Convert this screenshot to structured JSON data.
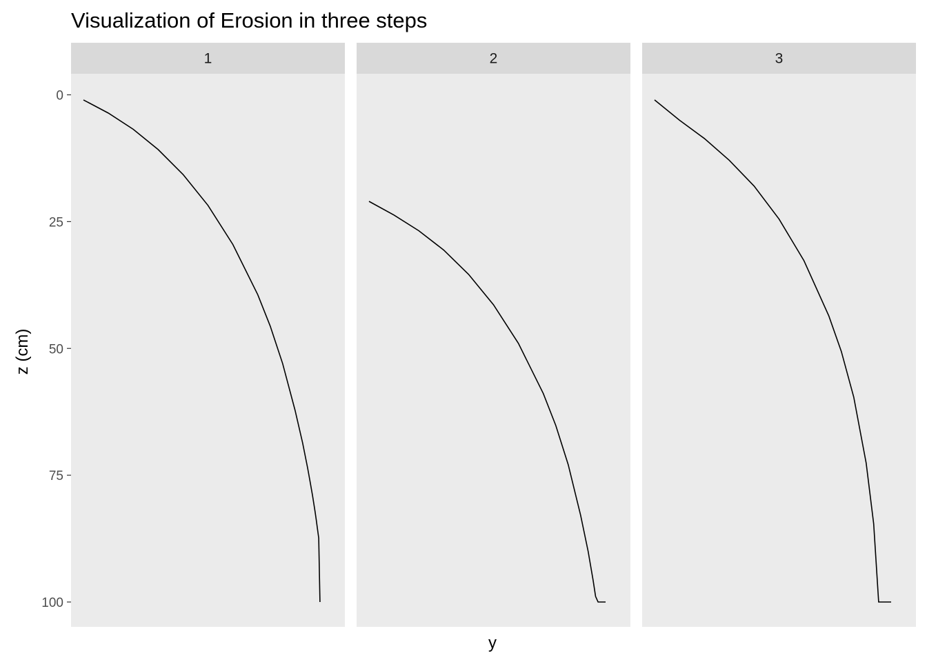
{
  "chart_data": {
    "type": "line",
    "title": "Visualization of Erosion in three steps",
    "xlabel": "y",
    "ylabel": "z (cm)",
    "y_reversed": true,
    "ylim": [
      0,
      100
    ],
    "y_ticks": [
      "0",
      "25",
      "50",
      "75",
      "100"
    ],
    "x_tick_labels": "none",
    "x_relative_range": [
      0,
      1
    ],
    "panel_background": "#ebebeb",
    "strip_background": "#d9d9d9",
    "line_color": "#000000",
    "facets": [
      {
        "label": "1",
        "series": {
          "x": [
            0.0,
            0.1,
            0.2,
            0.3,
            0.4,
            0.5,
            0.6,
            0.7,
            0.75,
            0.8,
            0.85,
            0.88,
            0.9,
            0.91,
            0.92,
            0.93,
            0.935,
            0.94,
            0.945,
            0.95
          ],
          "z": [
            1.0,
            3.6,
            6.8,
            10.8,
            15.7,
            21.8,
            29.5,
            39.4,
            45.6,
            53.0,
            62.2,
            68.6,
            73.5,
            76.2,
            79.0,
            82.1,
            83.8,
            85.6,
            87.4,
            100.0
          ]
        }
      },
      {
        "label": "2",
        "series": {
          "x": [
            0.0,
            0.1,
            0.2,
            0.3,
            0.4,
            0.5,
            0.6,
            0.7,
            0.75,
            0.8,
            0.85,
            0.88,
            0.9,
            0.91,
            0.92,
            0.93,
            0.935,
            0.94,
            0.945,
            0.95
          ],
          "z": [
            21.0,
            23.7,
            26.8,
            30.6,
            35.4,
            41.4,
            49.0,
            58.9,
            65.2,
            72.9,
            82.9,
            90.0,
            95.7,
            98.9,
            100.0,
            100.0,
            100.0,
            100.0,
            100.0,
            100.0
          ]
        }
      },
      {
        "label": "3",
        "series": {
          "x": [
            0.0,
            0.1,
            0.2,
            0.3,
            0.4,
            0.5,
            0.6,
            0.7,
            0.75,
            0.8,
            0.85,
            0.88,
            0.9,
            0.91,
            0.92,
            0.93,
            0.935,
            0.94,
            0.945,
            0.95
          ],
          "z": [
            1.0,
            5.0,
            8.6,
            12.9,
            18.0,
            24.5,
            32.7,
            43.6,
            50.6,
            59.6,
            72.6,
            84.6,
            100.0,
            100.0,
            100.0,
            100.0,
            100.0,
            100.0,
            100.0,
            100.0
          ]
        }
      }
    ]
  }
}
